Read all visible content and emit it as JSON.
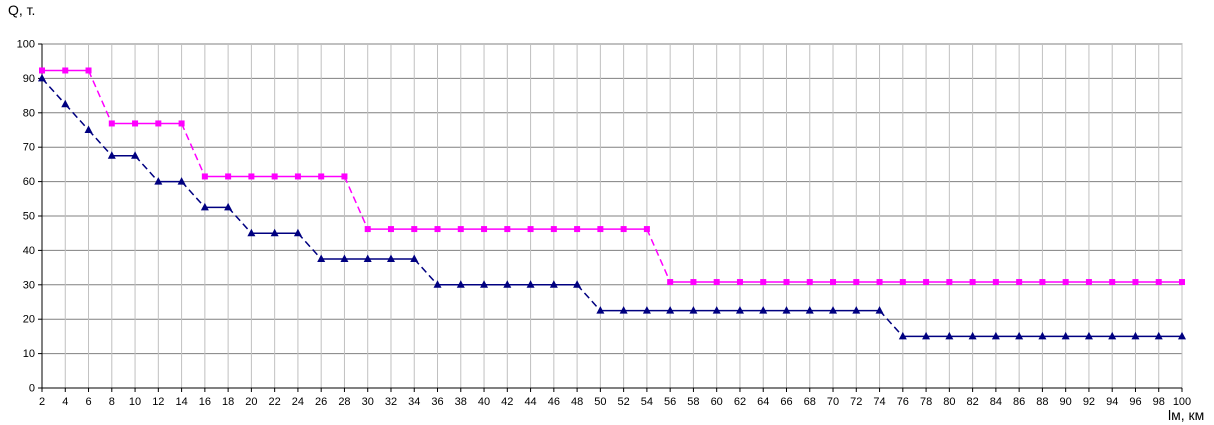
{
  "chart_data": {
    "type": "line",
    "ylabel": "Q, т.",
    "xlabel": "lм, км",
    "ylim": [
      0,
      100
    ],
    "yticks": [
      0,
      10,
      20,
      30,
      40,
      50,
      60,
      70,
      80,
      90,
      100
    ],
    "x": [
      2,
      4,
      6,
      8,
      10,
      12,
      14,
      16,
      18,
      20,
      22,
      24,
      26,
      28,
      30,
      32,
      34,
      36,
      38,
      40,
      42,
      44,
      46,
      48,
      50,
      52,
      54,
      56,
      58,
      60,
      62,
      64,
      66,
      68,
      70,
      72,
      74,
      76,
      78,
      80,
      82,
      84,
      86,
      88,
      90,
      92,
      94,
      96,
      98,
      100
    ],
    "grid": true,
    "legend": "none",
    "series": [
      {
        "color": "#ff00ff",
        "marker": "square",
        "line": "dashed",
        "values": [
          92.3,
          92.3,
          92.3,
          76.9,
          76.9,
          76.9,
          76.9,
          61.5,
          61.5,
          61.5,
          61.5,
          61.5,
          61.5,
          61.5,
          46.2,
          46.2,
          46.2,
          46.2,
          46.2,
          46.2,
          46.2,
          46.2,
          46.2,
          46.2,
          46.2,
          46.2,
          46.2,
          30.8,
          30.8,
          30.8,
          30.8,
          30.8,
          30.8,
          30.8,
          30.8,
          30.8,
          30.8,
          30.8,
          30.8,
          30.8,
          30.8,
          30.8,
          30.8,
          30.8,
          30.8,
          30.8,
          30.8,
          30.8,
          30.8,
          30.8
        ]
      },
      {
        "color": "#000080",
        "marker": "triangle",
        "line": "dashed",
        "values": [
          90,
          82.5,
          75,
          67.5,
          67.5,
          60,
          60,
          52.5,
          52.5,
          45,
          45,
          45,
          37.5,
          37.5,
          37.5,
          37.5,
          37.5,
          30,
          30,
          30,
          30,
          30,
          30,
          30,
          22.5,
          22.5,
          22.5,
          22.5,
          22.5,
          22.5,
          22.5,
          22.5,
          22.5,
          22.5,
          22.5,
          22.5,
          22.5,
          15,
          15,
          15,
          15,
          15,
          15,
          15,
          15,
          15,
          15,
          15,
          15,
          15
        ]
      }
    ]
  }
}
